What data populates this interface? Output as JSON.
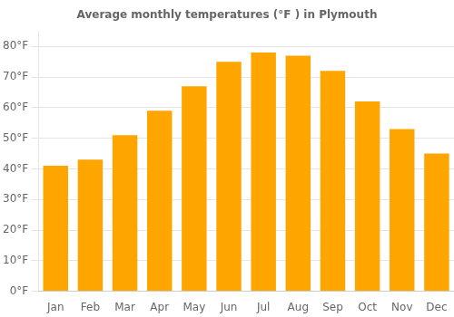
{
  "chart_data": {
    "type": "bar",
    "title": "Average monthly temperatures (°F ) in Plymouth",
    "categories": [
      "Jan",
      "Feb",
      "Mar",
      "Apr",
      "May",
      "Jun",
      "Jul",
      "Aug",
      "Sep",
      "Oct",
      "Nov",
      "Dec"
    ],
    "values": [
      41,
      43,
      51,
      59,
      67,
      75,
      78,
      77,
      72,
      62,
      53,
      45
    ],
    "color": "#FFA500",
    "ylim": [
      0,
      85
    ],
    "yticks": [
      {
        "value": 0,
        "label": "0°F"
      },
      {
        "value": 10,
        "label": "10°F"
      },
      {
        "value": 20,
        "label": "20°F"
      },
      {
        "value": 30,
        "label": "30°F"
      },
      {
        "value": 40,
        "label": "40°F"
      },
      {
        "value": 50,
        "label": "50°F"
      },
      {
        "value": 60,
        "label": "60°F"
      },
      {
        "value": 70,
        "label": "70°F"
      },
      {
        "value": 80,
        "label": "80°F"
      }
    ],
    "grid": true
  }
}
